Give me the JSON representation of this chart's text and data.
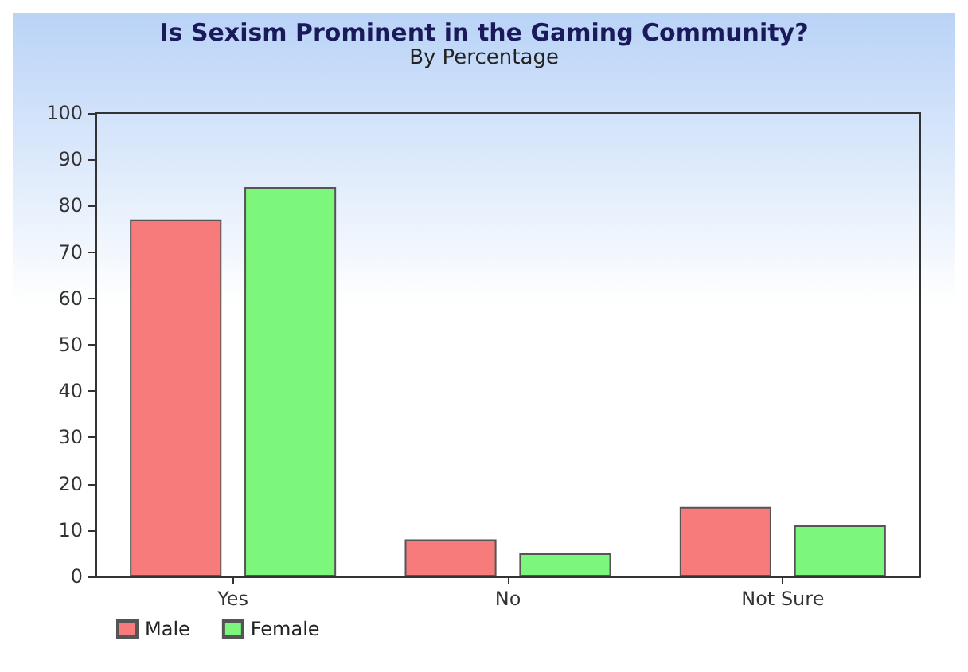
{
  "chart_data": {
    "type": "bar",
    "title": "Is Sexism Prominent in the Gaming Community?",
    "subtitle": "By Percentage",
    "categories": [
      "Yes",
      "No",
      "Not Sure"
    ],
    "series": [
      {
        "name": "Male",
        "color": "#f77b7b",
        "values": [
          77,
          8,
          15
        ]
      },
      {
        "name": "Female",
        "color": "#7df77b",
        "values": [
          84,
          5,
          11
        ]
      }
    ],
    "ylim": [
      0,
      100
    ],
    "yticks": [
      0,
      10,
      20,
      30,
      40,
      50,
      60,
      70,
      80,
      90,
      100
    ],
    "grid": false,
    "legend": "bottom left"
  }
}
